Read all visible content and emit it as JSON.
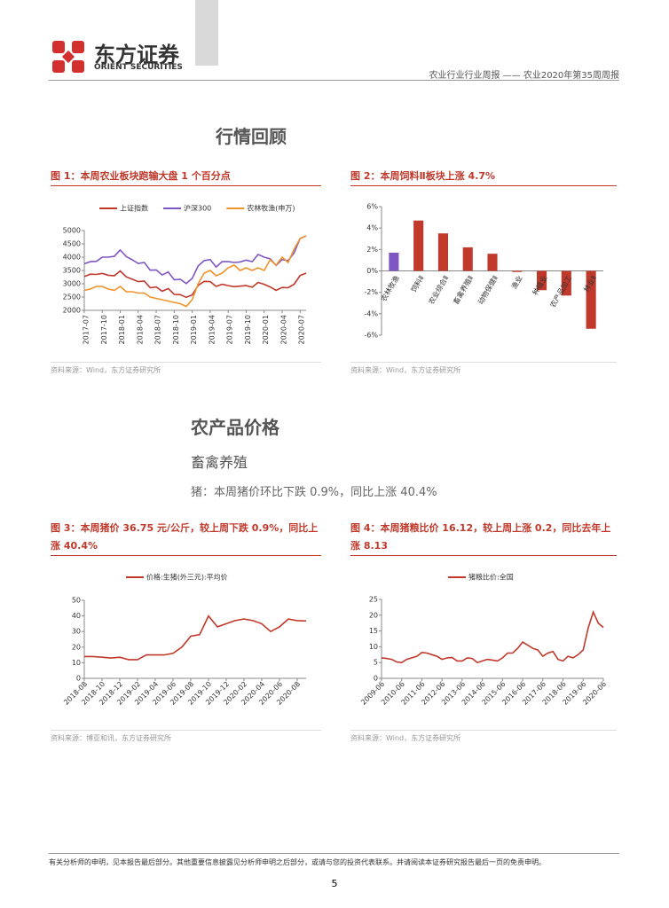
{
  "header": {
    "logo": "东方证券",
    "logo_en": "ORIENT SECURITIES",
    "report": "农业行业行业周报 —— 农业2020年第35周周报"
  },
  "sections": {
    "review": "行情回顾",
    "prices": "农产品价格",
    "livestock": "畜禽养殖",
    "pig": "猪：本周猪价环比下跌 0.9%，同比上涨 40.4%"
  },
  "chart_data": [
    {
      "type": "line",
      "title": "图 1：本周农业板块跑输大盘 1 个百分点",
      "source": "资料来源：Wind，东方证券研究所",
      "categories": [
        "2017-07",
        null,
        null,
        "2017-10",
        null,
        null,
        "2018-01",
        null,
        null,
        "2018-04",
        null,
        null,
        "2018-07",
        null,
        null,
        "2018-10",
        null,
        null,
        "2019-01",
        null,
        null,
        "2019-04",
        null,
        null,
        "2019-07",
        null,
        null,
        "2019-10",
        null,
        null,
        "2020-01",
        null,
        null,
        "2020-04",
        null,
        null,
        "2020-07",
        null
      ],
      "series": [
        {
          "name": "上证指数",
          "color": "#c0392b",
          "values": [
            3270,
            3360,
            3350,
            3390,
            3320,
            3300,
            3480,
            3260,
            3170,
            3080,
            3100,
            2850,
            2880,
            2720,
            2820,
            2600,
            2590,
            2490,
            2580,
            2940,
            3090,
            3080,
            2900,
            2980,
            2930,
            2890,
            2910,
            2930,
            2870,
            3050,
            2980,
            2880,
            2750,
            2860,
            2850,
            2980,
            3310,
            3400
          ]
        },
        {
          "name": "沪深300",
          "color": "#7e57c2",
          "values": [
            3750,
            3830,
            3840,
            4000,
            4000,
            4030,
            4270,
            4020,
            3900,
            3760,
            3800,
            3510,
            3520,
            3330,
            3440,
            3150,
            3170,
            3010,
            3200,
            3670,
            3870,
            3910,
            3630,
            3830,
            3830,
            3800,
            3820,
            3890,
            3830,
            4100,
            4000,
            3940,
            3690,
            3910,
            3870,
            4160,
            4700,
            4800
          ]
        },
        {
          "name": "农林牧渔(申万)",
          "color": "#f0932b",
          "values": [
            2750,
            2800,
            2900,
            2900,
            2800,
            2750,
            2900,
            2700,
            2700,
            2650,
            2650,
            2500,
            2450,
            2400,
            2350,
            2300,
            2250,
            2150,
            2400,
            3000,
            3400,
            3500,
            3300,
            3400,
            3600,
            3700,
            3500,
            3600,
            3500,
            3600,
            3500,
            3900,
            3700,
            4000,
            3800,
            4300,
            4700,
            4800
          ]
        }
      ],
      "ylim": [
        2000,
        5000
      ],
      "yticks": [
        2000,
        2500,
        3000,
        3500,
        4000,
        4500,
        5000
      ]
    },
    {
      "type": "bar",
      "title": "图 2：本周饲料Ⅱ板块上涨 4.7%",
      "source": "资料来源：Wind，东方证券研究所",
      "categories": [
        "农林牧渔",
        "饲料Ⅱ",
        "农业综合Ⅱ",
        "畜禽养殖Ⅱ",
        "动物保健Ⅱ",
        "渔业",
        "种植业",
        "农产品加工",
        "林业Ⅱ"
      ],
      "values": [
        1.7,
        4.7,
        3.5,
        2.2,
        1.6,
        -0.1,
        -1.8,
        -2.3,
        -5.4
      ],
      "colors": [
        "#7e57c2",
        "#c0392b",
        "#c0392b",
        "#c0392b",
        "#c0392b",
        "#c0392b",
        "#c0392b",
        "#c0392b",
        "#c0392b"
      ],
      "ylim": [
        -6,
        6
      ],
      "yticks": [
        {
          "value": -6,
          "label": "-6%"
        },
        {
          "value": -4,
          "label": "-4%"
        },
        {
          "value": -2,
          "label": "-2%"
        },
        {
          "value": 0,
          "label": "0%"
        },
        {
          "value": 2,
          "label": "2%"
        },
        {
          "value": 4,
          "label": "4%"
        },
        {
          "value": 6,
          "label": "6%"
        }
      ]
    },
    {
      "type": "line",
      "title": "图 3：本周猪价 36.75 元/公斤，较上周下跌 0.9%，同比上涨 40.4%",
      "source": "资料来源：博亚和讯，东方证券研究所",
      "categories": [
        "2018-08",
        null,
        "2018-10",
        null,
        "2018-12",
        null,
        "2019-02",
        null,
        "2019-04",
        null,
        "2019-06",
        null,
        "2019-08",
        null,
        "2019-10",
        null,
        "2019-12",
        null,
        "2020-02",
        null,
        "2020-04",
        null,
        "2020-06",
        null,
        "2020-08",
        null
      ],
      "series": [
        {
          "name": "价格:生猪(外三元):平均价",
          "color": "#c0392b",
          "values": [
            14,
            14,
            13.5,
            13,
            13.5,
            12,
            12,
            15,
            15,
            15,
            16,
            20,
            27,
            28,
            40,
            33,
            35,
            37,
            38,
            37,
            35,
            30,
            33,
            38,
            37,
            36.75
          ]
        }
      ],
      "ylim": [
        0,
        50
      ],
      "yticks": [
        0,
        10,
        20,
        30,
        40,
        50
      ]
    },
    {
      "type": "line",
      "title": "图 4：本周猪粮比价 16.12，较上周上涨 0.2，同比去年上涨 8.13",
      "source": "资料来源：Wind，东方证券研究所",
      "categories": [
        "2009-06",
        null,
        null,
        null,
        "2010-06",
        null,
        null,
        null,
        "2011-06",
        null,
        null,
        null,
        "2012-06",
        null,
        null,
        null,
        "2013-06",
        null,
        null,
        null,
        "2014-06",
        null,
        null,
        null,
        "2015-06",
        null,
        null,
        null,
        "2016-06",
        null,
        null,
        null,
        "2017-06",
        null,
        null,
        null,
        "2018-06",
        null,
        null,
        null,
        "2019-06",
        null,
        null,
        null,
        "2020-06"
      ],
      "series": [
        {
          "name": "猪粮比价:全国",
          "color": "#c0392b",
          "values": [
            6.5,
            6.3,
            6.0,
            5.2,
            5.0,
            6.0,
            6.5,
            7.0,
            8.2,
            8.0,
            7.5,
            7.0,
            6.0,
            6.5,
            6.6,
            5.5,
            5.5,
            6.5,
            6.3,
            5.0,
            5.5,
            6.0,
            5.8,
            5.5,
            6.5,
            8.0,
            8.0,
            9.5,
            11.5,
            10.5,
            9.5,
            9.0,
            7.0,
            8.0,
            8.5,
            6.0,
            5.5,
            7.0,
            6.5,
            7.5,
            9.0,
            16.0,
            21.0,
            17.5,
            16.12
          ]
        }
      ],
      "ylim": [
        0,
        25
      ],
      "yticks": [
        0,
        5,
        10,
        15,
        20,
        25
      ]
    }
  ],
  "footer": {
    "disclaimer": "有关分析师的申明，见本报告最后部分。其他重要信息披露见分析师申明之后部分，或请与您的投资代表联系。并请阅读本证券研究报告最后一页的免责申明。",
    "page": "5"
  }
}
